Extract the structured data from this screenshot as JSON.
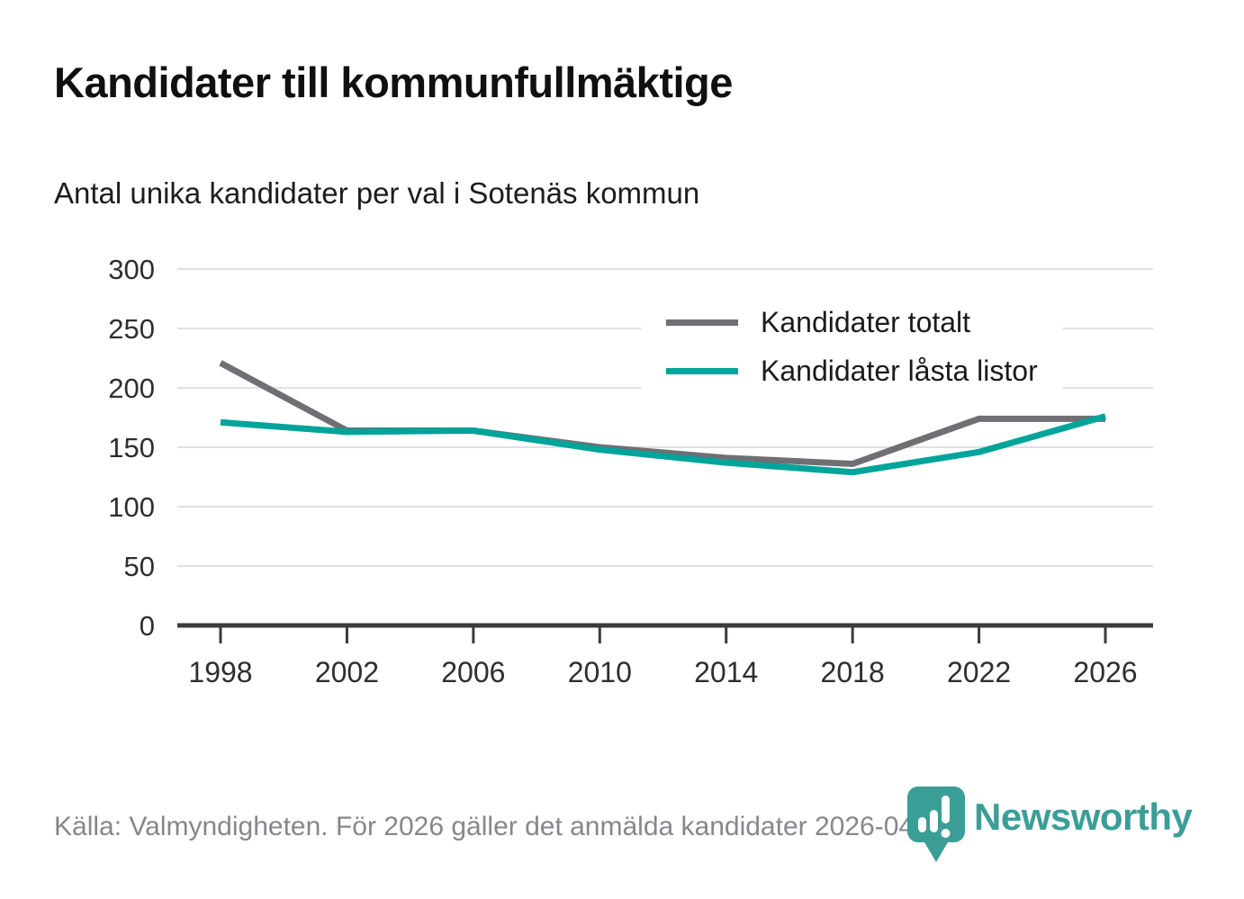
{
  "header": {
    "title": "Kandidater till kommunfullmäktige",
    "subtitle": "Antal unika kandidater per val i Sotenäs kommun"
  },
  "chart_data": {
    "type": "line",
    "x": [
      1998,
      2002,
      2006,
      2010,
      2014,
      2018,
      2022,
      2026
    ],
    "series": [
      {
        "name": "Kandidater totalt",
        "color": "#6f6f74",
        "values": [
          221,
          164,
          164,
          150,
          141,
          136,
          174,
          174
        ]
      },
      {
        "name": "Kandidater låsta listor",
        "color": "#00a49a",
        "values": [
          171,
          163,
          164,
          148,
          137,
          129,
          146,
          176
        ]
      }
    ],
    "title": "Kandidater till kommunfullmäktige",
    "subtitle": "Antal unika kandidater per val i Sotenäs kommun",
    "xlabel": "",
    "ylabel": "",
    "ylim": [
      0,
      300
    ],
    "yticks": [
      0,
      50,
      100,
      150,
      200,
      250,
      300
    ],
    "grid": "horizontal",
    "legend_position": "top-right-inside"
  },
  "footer": {
    "source_text": "Källa: Valmyndigheten. För 2026 gäller det anmälda kandidater 2026-04-10."
  },
  "logo": {
    "brand": "Newsworthy",
    "color": "#3a9e97"
  },
  "style_colors": {
    "axis": "#3b3b3b",
    "gridline": "#e0e0e0",
    "tick_label": "#2e2e2e"
  }
}
